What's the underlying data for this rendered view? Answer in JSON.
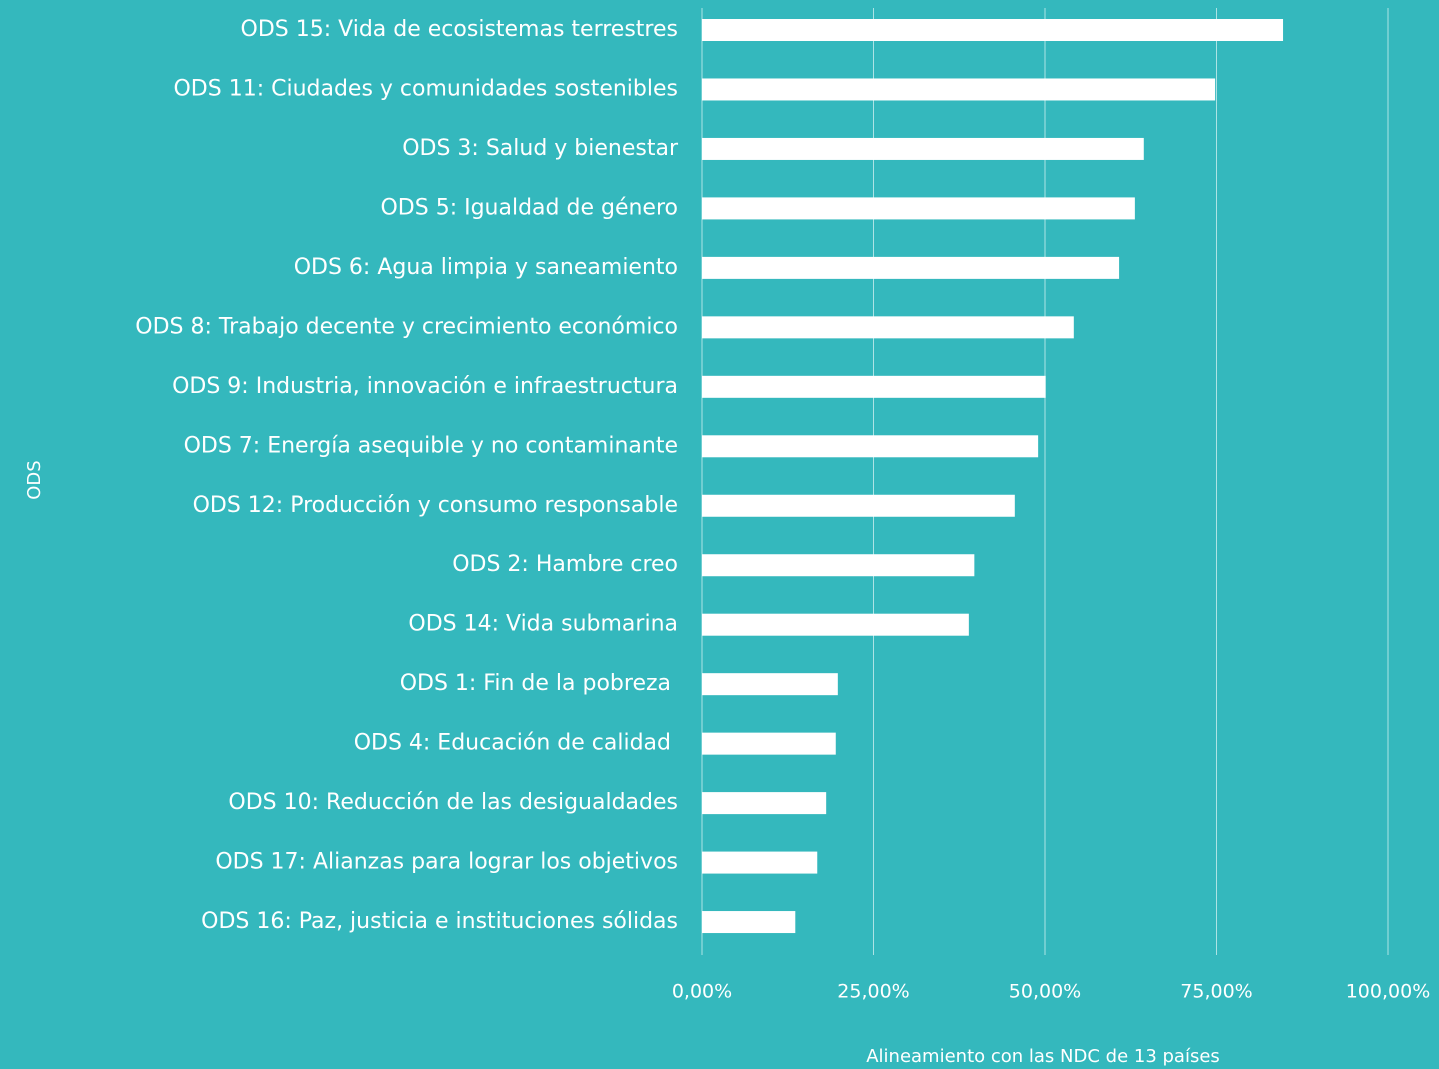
{
  "chart_data": {
    "type": "bar",
    "orientation": "horizontal",
    "x_label": "Alineamiento con las NDC de 13 países",
    "y_label": "ODS",
    "categories": [
      "ODS 15: Vida de ecosistemas terrestres",
      "ODS 11: Ciudades y comunidades sostenibles",
      "ODS 3: Salud y bienestar",
      "ODS 5: Igualdad de género",
      "ODS 6: Agua limpia y saneamiento",
      "ODS 8: Trabajo decente y crecimiento económico",
      "ODS 9: Industria, innovación e infraestructura",
      "ODS 7: Energía asequible y no contaminante",
      "ODS 12: Producción y consumo responsable",
      "ODS 2: Hambre creo",
      "ODS 14: Vida submarina",
      "ODS 1: Fin de la pobreza ",
      "ODS 4: Educación de calidad ",
      "ODS 10: Reducción de las desigualdades",
      "ODS 17: Alianzas para lograr los objetivos",
      "ODS 16: Paz, justicia e instituciones sólidas"
    ],
    "values": [
      84.7,
      74.8,
      64.4,
      63.1,
      60.8,
      54.2,
      50.1,
      49.0,
      45.6,
      39.7,
      38.9,
      19.8,
      19.5,
      18.1,
      16.8,
      13.6
    ],
    "color": "#ffffff",
    "xlim": [
      0,
      100
    ],
    "xticks": [
      {
        "value": 0,
        "label": "0,00%"
      },
      {
        "value": 25,
        "label": "25,00%"
      },
      {
        "value": 50,
        "label": "50,00%"
      },
      {
        "value": 75,
        "label": "75,00%"
      },
      {
        "value": 100,
        "label": "100,00%"
      }
    ],
    "grid": true
  }
}
